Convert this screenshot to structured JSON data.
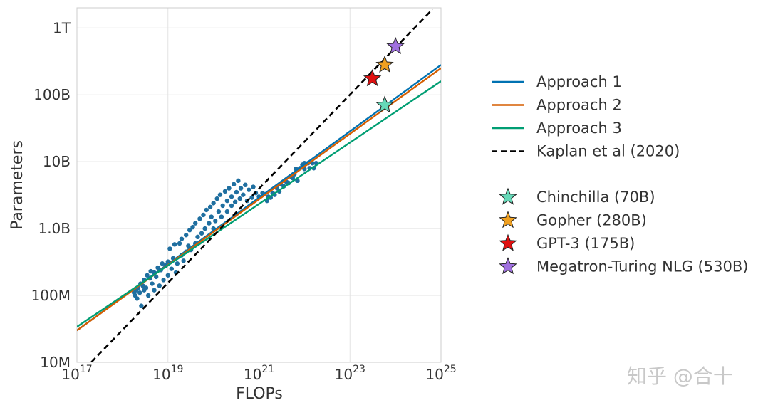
{
  "chart_data": {
    "type": "scatter",
    "xlabel": "FLOPs",
    "ylabel": "Parameters",
    "xscale": "log",
    "yscale": "log",
    "xlim": [
      1e+17,
      1e+25
    ],
    "ylim": [
      10000000.0,
      2000000000000.0
    ],
    "grid": true,
    "legend_placement": "right",
    "x_ticks": [
      {
        "value": 1e+17,
        "base": "10",
        "exp": "17"
      },
      {
        "value": 1e+19,
        "base": "10",
        "exp": "19"
      },
      {
        "value": 1e+21,
        "base": "10",
        "exp": "21"
      },
      {
        "value": 1e+23,
        "base": "10",
        "exp": "23"
      },
      {
        "value": 1e+25,
        "base": "10",
        "exp": "25"
      }
    ],
    "y_ticks": [
      {
        "value": 10000000.0,
        "label": "10M"
      },
      {
        "value": 100000000.0,
        "label": "100M"
      },
      {
        "value": 1000000000.0,
        "label": "1.0B"
      },
      {
        "value": 10000000000.0,
        "label": "10B"
      },
      {
        "value": 100000000000.0,
        "label": "100B"
      },
      {
        "value": 1000000000000.0,
        "label": "1T"
      }
    ],
    "lines": [
      {
        "name": "Approach 1",
        "color": "#0072B2",
        "style": "solid",
        "x": [
          1e+17,
          1e+25
        ],
        "y": [
          30000000.0,
          280000000000.0
        ]
      },
      {
        "name": "Approach 2",
        "color": "#D55E00",
        "style": "solid",
        "x": [
          1e+17,
          1e+25
        ],
        "y": [
          30000000.0,
          250000000000.0
        ]
      },
      {
        "name": "Approach 3",
        "color": "#009E73",
        "style": "solid",
        "x": [
          1e+17,
          1e+25
        ],
        "y": [
          34000000.0,
          160000000000.0
        ]
      },
      {
        "name": "Kaplan et al (2020)",
        "color": "#000000",
        "style": "dashed",
        "x": [
          1.5e+17,
          6.5e+24
        ],
        "y": [
          8000000.0,
          1900000000000.0
        ]
      }
    ],
    "models": [
      {
        "name": "Chinchilla (70B)",
        "color": "#66D9B8",
        "x": 5.8e+23,
        "y": 70000000000.0
      },
      {
        "name": "Gopher (280B)",
        "color": "#F0A020",
        "x": 5.8e+23,
        "y": 280000000000.0
      },
      {
        "name": "GPT-3 (175B)",
        "color": "#E01010",
        "x": 3.1e+23,
        "y": 175000000000.0
      },
      {
        "name": "Megatron-Turing NLG (530B)",
        "color": "#A070E0",
        "x": 1e+24,
        "y": 530000000000.0
      }
    ],
    "scatter_color": "#1f6fa0",
    "scatter": [
      [
        1.8e+18,
        110000000.0
      ],
      [
        1.9e+18,
        100000000.0
      ],
      [
        2e+18,
        120000000.0
      ],
      [
        2.1e+18,
        90000000.0
      ],
      [
        2.2e+18,
        130000000.0
      ],
      [
        2.4e+18,
        110000000.0
      ],
      [
        2.5e+18,
        150000000.0
      ],
      [
        2.6e+18,
        70000000.0
      ],
      [
        2.8e+18,
        140000000.0
      ],
      [
        3e+18,
        170000000.0
      ],
      [
        3e+18,
        120000000.0
      ],
      [
        3.3e+18,
        130000000.0
      ],
      [
        3.5e+18,
        200000000.0
      ],
      [
        3.7e+18,
        100000000.0
      ],
      [
        4e+18,
        180000000.0
      ],
      [
        4.2e+18,
        230000000.0
      ],
      [
        4.5e+18,
        150000000.0
      ],
      [
        5e+18,
        220000000.0
      ],
      [
        5e+18,
        120000000.0
      ],
      [
        5.5e+18,
        190000000.0
      ],
      [
        6e+18,
        260000000.0
      ],
      [
        6.5e+18,
        140000000.0
      ],
      [
        7e+18,
        240000000.0
      ],
      [
        7.5e+18,
        300000000.0
      ],
      [
        8e+18,
        170000000.0
      ],
      [
        9e+18,
        280000000.0
      ],
      [
        1e+19,
        320000000.0
      ],
      [
        1e+19,
        200000000.0
      ],
      [
        1.1e+19,
        500000000.0
      ],
      [
        1.2e+19,
        250000000.0
      ],
      [
        1.3e+19,
        360000000.0
      ],
      [
        1.4e+19,
        580000000.0
      ],
      [
        1.5e+19,
        220000000.0
      ],
      [
        1.6e+19,
        300000000.0
      ],
      [
        1.8e+19,
        600000000.0
      ],
      [
        2e+19,
        400000000.0
      ],
      [
        2e+19,
        700000000.0
      ],
      [
        2.2e+19,
        330000000.0
      ],
      [
        2.5e+19,
        800000000.0
      ],
      [
        2.5e+19,
        450000000.0
      ],
      [
        2.8e+19,
        550000000.0
      ],
      [
        3e+19,
        950000000.0
      ],
      [
        3.2e+19,
        480000000.0
      ],
      [
        3.5e+19,
        1050000000.0
      ],
      [
        4e+19,
        600000000.0
      ],
      [
        4e+19,
        1200000000.0
      ],
      [
        4.5e+19,
        750000000.0
      ],
      [
        5e+19,
        1400000000.0
      ],
      [
        5.5e+19,
        850000000.0
      ],
      [
        6e+19,
        1600000000.0
      ],
      [
        6.5e+19,
        1000000000.0
      ],
      [
        7e+19,
        1900000000.0
      ],
      [
        8e+19,
        1200000000.0
      ],
      [
        8.5e+19,
        2100000000.0
      ],
      [
        9e+19,
        1500000000.0
      ],
      [
        1e+20,
        2400000000.0
      ],
      [
        1e+20,
        1000000000.0
      ],
      [
        1.1e+20,
        1300000000.0
      ],
      [
        1.2e+20,
        2800000000.0
      ],
      [
        1.3e+20,
        1800000000.0
      ],
      [
        1.4e+20,
        3200000000.0
      ],
      [
        1.5e+20,
        1500000000.0
      ],
      [
        1.6e+20,
        2200000000.0
      ],
      [
        1.8e+20,
        3600000000.0
      ],
      [
        2e+20,
        1800000000.0
      ],
      [
        2e+20,
        2600000000.0
      ],
      [
        2.2e+20,
        4000000000.0
      ],
      [
        2.5e+20,
        2200000000.0
      ],
      [
        2.5e+20,
        3000000000.0
      ],
      [
        2.8e+20,
        4600000000.0
      ],
      [
        3e+20,
        2500000000.0
      ],
      [
        3.2e+20,
        3500000000.0
      ],
      [
        3.5e+20,
        5200000000.0
      ],
      [
        3.8e+20,
        2800000000.0
      ],
      [
        4e+20,
        4000000000.0
      ],
      [
        4.5e+20,
        3200000000.0
      ],
      [
        5e+20,
        4500000000.0
      ],
      [
        5.5e+20,
        2600000000.0
      ],
      [
        6e+20,
        3800000000.0
      ],
      [
        7e+20,
        2900000000.0
      ],
      [
        7.5e+20,
        4200000000.0
      ],
      [
        8.5e+20,
        3400000000.0
      ],
      [
        1e+21,
        3000000000.0
      ],
      [
        1.2e+21,
        3400000000.0
      ],
      [
        1.5e+21,
        2600000000.0
      ],
      [
        1.6e+21,
        3000000000.0
      ],
      [
        1.8e+21,
        2900000000.0
      ],
      [
        2e+21,
        3400000000.0
      ],
      [
        2.2e+21,
        3200000000.0
      ],
      [
        2.5e+21,
        4000000000.0
      ],
      [
        2.8e+21,
        3600000000.0
      ],
      [
        3e+21,
        4600000000.0
      ],
      [
        3.5e+21,
        4300000000.0
      ],
      [
        4e+21,
        5000000000.0
      ],
      [
        4.5e+21,
        4800000000.0
      ],
      [
        5e+21,
        6000000000.0
      ],
      [
        5.5e+21,
        5700000000.0
      ],
      [
        6e+21,
        6500000000.0
      ],
      [
        7e+21,
        7500000000.0
      ],
      [
        8e+21,
        8000000000.0
      ],
      [
        9e+21,
        9000000000.0
      ],
      [
        7e+21,
        5200000000.0
      ],
      [
        1e+22,
        9500000000.0
      ],
      [
        1.2e+22,
        9500000000.0
      ],
      [
        1.5e+22,
        9500000000.0
      ],
      [
        1.8e+22,
        9500000000.0
      ],
      [
        6.5e+21,
        7800000000.0
      ],
      [
        1e+22,
        7800000000.0
      ],
      [
        1.3e+22,
        8000000000.0
      ],
      [
        1.6e+22,
        8000000000.0
      ]
    ]
  },
  "watermark": "知乎 @合十"
}
